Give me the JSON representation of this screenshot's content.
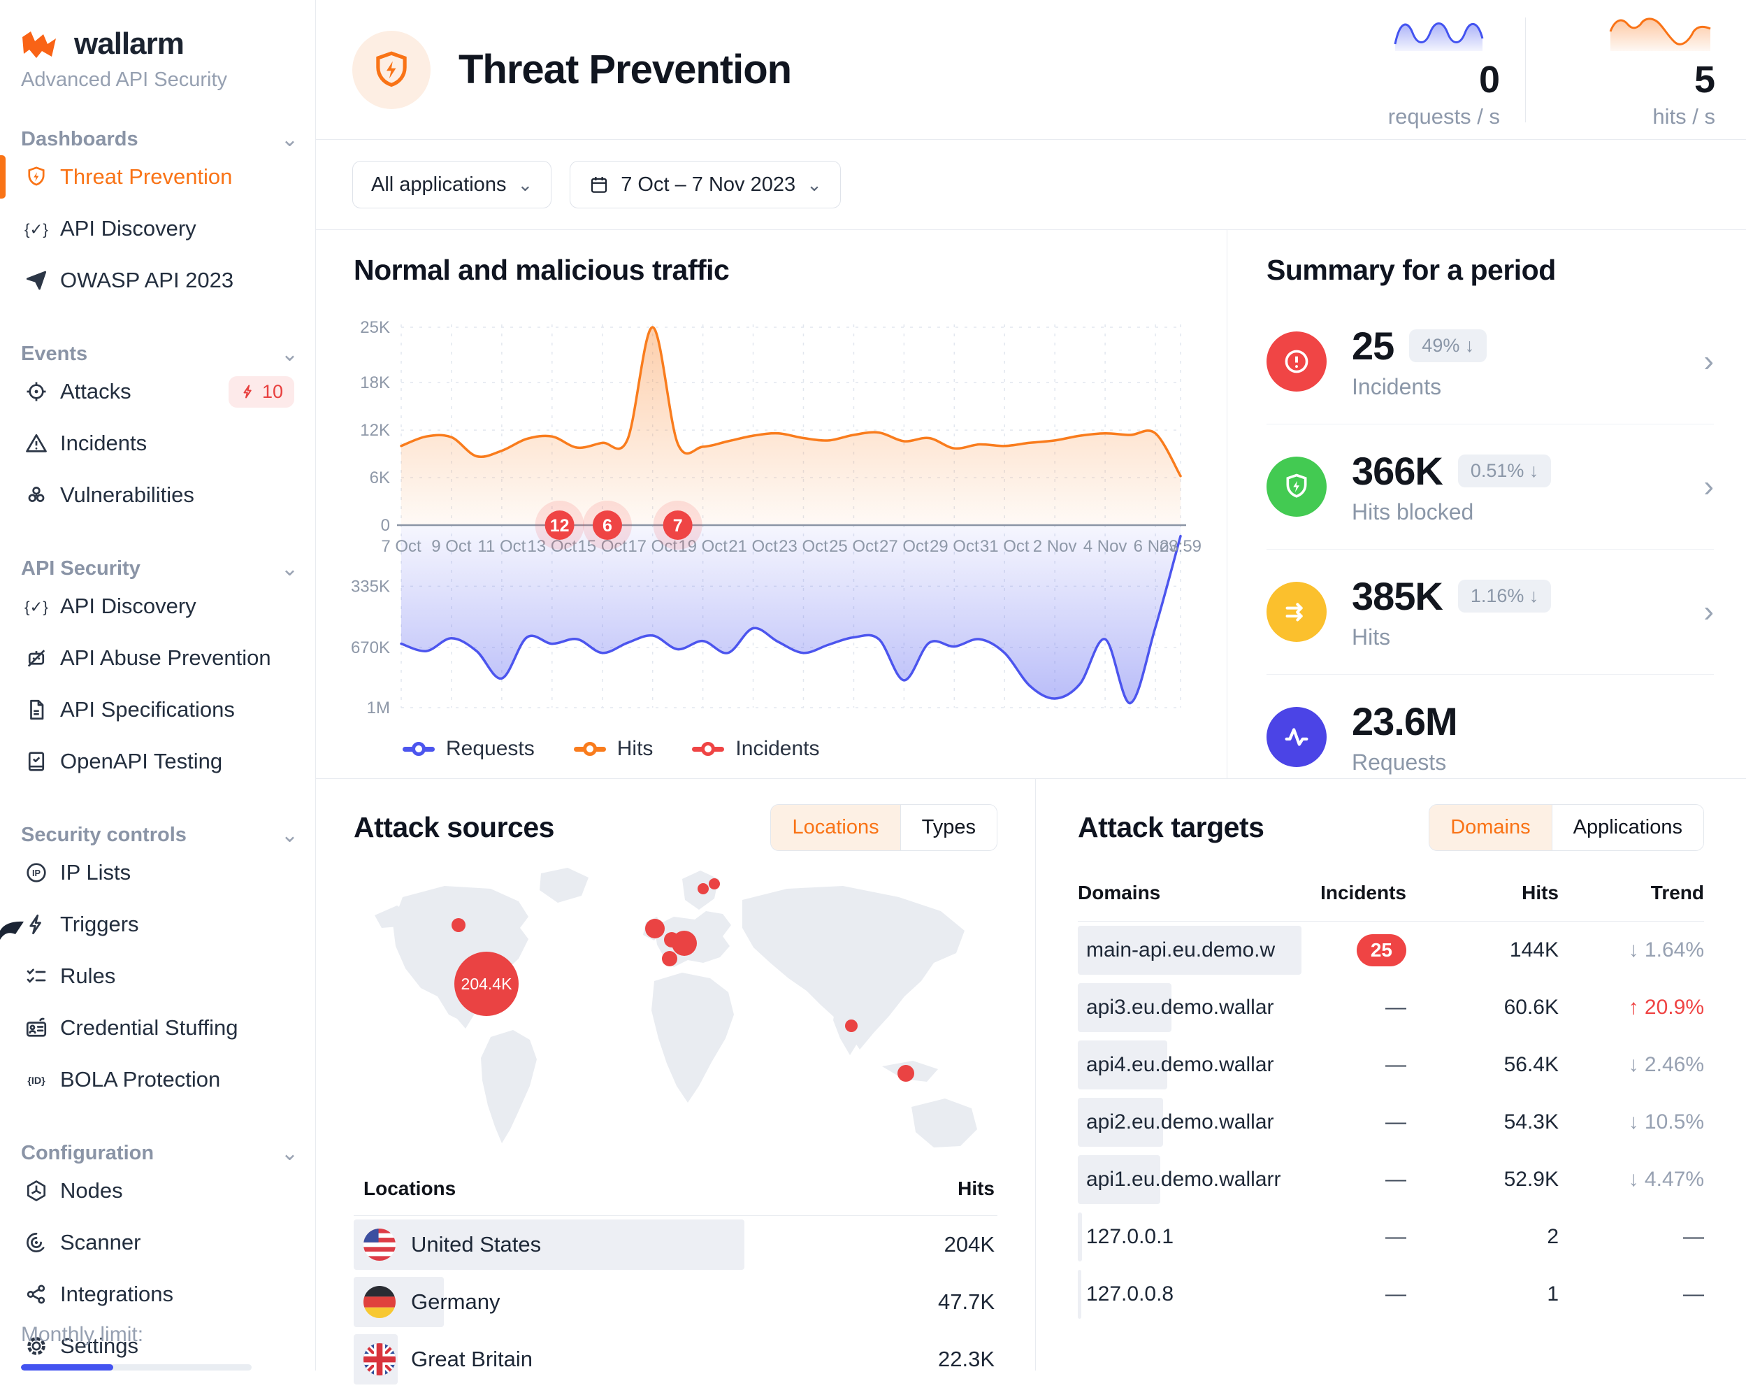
{
  "icons": {
    "chevron_down": "⌄",
    "chevron_right": "›",
    "em_dash": "—"
  },
  "colors": {
    "brand_orange": "#f97316",
    "accent_blue": "#4353f0",
    "status_red": "#ef4444",
    "status_green": "#43ca52",
    "status_yellow": "#fbc02d",
    "status_indigo": "#4b44e6"
  },
  "sidebar": {
    "logo_text": "wallarm",
    "subtitle": "Advanced API Security",
    "sections": [
      {
        "label": "Dashboards",
        "items": [
          {
            "label": "Threat Prevention",
            "active": true
          },
          {
            "label": "API Discovery"
          },
          {
            "label": "OWASP API 2023"
          }
        ]
      },
      {
        "label": "Events",
        "items": [
          {
            "label": "Attacks",
            "badge": "10"
          },
          {
            "label": "Incidents"
          },
          {
            "label": "Vulnerabilities"
          }
        ]
      },
      {
        "label": "API Security",
        "items": [
          {
            "label": "API Discovery"
          },
          {
            "label": "API Abuse Prevention"
          },
          {
            "label": "API Specifications"
          },
          {
            "label": "OpenAPI Testing"
          }
        ]
      },
      {
        "label": "Security controls",
        "items": [
          {
            "label": "IP Lists"
          },
          {
            "label": "Triggers"
          },
          {
            "label": "Rules"
          },
          {
            "label": "Credential Stuffing"
          },
          {
            "label": "BOLA Protection"
          }
        ]
      },
      {
        "label": "Configuration",
        "items": [
          {
            "label": "Nodes"
          },
          {
            "label": "Scanner"
          },
          {
            "label": "Integrations"
          },
          {
            "label": "Settings"
          }
        ]
      }
    ],
    "monthly_limit_label": "Monthly limit:"
  },
  "header": {
    "title": "Threat Prevention",
    "stats": [
      {
        "value": "0",
        "label": "requests / s",
        "color": "#4353f0"
      },
      {
        "value": "5",
        "label": "hits / s",
        "color": "#f97316"
      }
    ]
  },
  "filters": {
    "applications": "All applications",
    "date_range": "7 Oct – 7 Nov 2023"
  },
  "chart_data": {
    "type": "area",
    "title": "Normal and malicious traffic",
    "x_domain": [
      "7 Oct 2023",
      "7 Nov 2023"
    ],
    "x_labels": [
      "7 Oct",
      "9 Oct",
      "11 Oct",
      "13 Oct",
      "15 Oct",
      "17 Oct",
      "19 Oct",
      "21 Oct",
      "23 Oct",
      "25 Oct",
      "27 Oct",
      "29 Oct",
      "31 Oct",
      "2 Nov",
      "4 Nov",
      "6 Nov",
      "23:59"
    ],
    "upper_axis": {
      "ticks": [
        "25K",
        "18K",
        "12K",
        "6K",
        "0"
      ],
      "values": [
        25,
        18,
        12,
        6,
        0
      ],
      "max": 25,
      "series": "Hits"
    },
    "lower_axis": {
      "ticks": [
        "335K",
        "670K",
        "1M"
      ],
      "values": [
        335,
        670,
        1000
      ],
      "max": 1000,
      "inverted": true,
      "series": "Requests"
    },
    "grid": "dashed",
    "legend_position": "bottom-left",
    "legend": [
      "Requests",
      "Hits",
      "Incidents"
    ],
    "series": [
      {
        "name": "Requests",
        "color": "#4c55ee",
        "axis": "lower",
        "unit": "K/day",
        "values_k": [
          650,
          690,
          620,
          690,
          840,
          615,
          650,
          625,
          700,
          645,
          605,
          680,
          635,
          700,
          565,
          640,
          700,
          655,
          615,
          625,
          850,
          645,
          665,
          625,
          700,
          880,
          950,
          870,
          625,
          975,
          560,
          60
        ]
      },
      {
        "name": "Hits",
        "color": "#f97c1d",
        "axis": "upper",
        "unit": "K/day",
        "values_k": [
          10,
          11.2,
          11.1,
          8.7,
          9.4,
          10.9,
          11.2,
          9.8,
          10.4,
          10.8,
          25,
          10.3,
          9.9,
          10.6,
          11.3,
          11.6,
          11,
          10.7,
          11.4,
          11.7,
          10.6,
          11,
          9.7,
          10.2,
          10,
          10.4,
          10.7,
          11.3,
          11.6,
          11.4,
          11.6,
          6.2
        ]
      }
    ],
    "incidents": {
      "name": "Incidents",
      "color": "#ef4444",
      "points": [
        {
          "day": 6.3,
          "date": "13 Oct",
          "count": 12
        },
        {
          "day": 8.2,
          "date": "15 Oct",
          "count": 6
        },
        {
          "day": 11,
          "date": "18 Oct",
          "count": 7
        }
      ]
    }
  },
  "summary": {
    "title": "Summary for a period",
    "rows": [
      {
        "value": "25",
        "badge": "49% ↓",
        "label": "Incidents",
        "color": "#f04545",
        "icon": "alert-circle"
      },
      {
        "value": "366K",
        "badge": "0.51% ↓",
        "label": "Hits blocked",
        "color": "#43ca52",
        "icon": "shield-bolt"
      },
      {
        "value": "385K",
        "badge": "1.16% ↓",
        "label": "Hits",
        "color": "#fbc02d",
        "icon": "arrows-right"
      },
      {
        "value": "23.6M",
        "badge": "",
        "label": "Requests",
        "color": "#4b44e6",
        "icon": "activity"
      }
    ]
  },
  "attack_sources": {
    "title": "Attack sources",
    "toggle": [
      "Locations",
      "Types"
    ],
    "selected": "Locations",
    "map": {
      "big_bubble_label": "204.4K"
    },
    "headers": [
      "Locations",
      "Hits"
    ],
    "rows": [
      {
        "name": "United States",
        "flag": "us",
        "hits": "204K",
        "bar_pct": 80
      },
      {
        "name": "Germany",
        "flag": "de",
        "hits": "47.7K",
        "bar_pct": 18.5
      },
      {
        "name": "Great Britain",
        "flag": "gb",
        "hits": "22.3K",
        "bar_pct": 9
      }
    ]
  },
  "attack_targets": {
    "title": "Attack targets",
    "toggle": [
      "Domains",
      "Applications"
    ],
    "selected": "Domains",
    "headers": [
      "Domains",
      "Incidents",
      "Hits",
      "Trend"
    ],
    "rows": [
      {
        "domain": "main-api.eu.demo.w",
        "incidents": "25",
        "hits": "144K",
        "trend": "↓ 1.64%",
        "trend_color": "#97a1b2",
        "bar_pct": 100
      },
      {
        "domain": "api3.eu.demo.wallar",
        "incidents": "—",
        "hits": "60.6K",
        "trend": "↑ 20.9%",
        "trend_color": "#ef4444",
        "bar_pct": 42
      },
      {
        "domain": "api4.eu.demo.wallar",
        "incidents": "—",
        "hits": "56.4K",
        "trend": "↓ 2.46%",
        "trend_color": "#97a1b2",
        "bar_pct": 40
      },
      {
        "domain": "api2.eu.demo.wallar",
        "incidents": "—",
        "hits": "54.3K",
        "trend": "↓ 10.5%",
        "trend_color": "#97a1b2",
        "bar_pct": 38
      },
      {
        "domain": "api1.eu.demo.wallarr",
        "incidents": "—",
        "hits": "52.9K",
        "trend": "↓ 4.47%",
        "trend_color": "#97a1b2",
        "bar_pct": 37
      },
      {
        "domain": "127.0.0.1",
        "incidents": "—",
        "hits": "2",
        "trend": "—",
        "trend_color": "#3f4a5a",
        "bar_pct": 2
      },
      {
        "domain": "127.0.0.8",
        "incidents": "—",
        "hits": "1",
        "trend": "—",
        "trend_color": "#3f4a5a",
        "bar_pct": 1.5
      }
    ]
  }
}
